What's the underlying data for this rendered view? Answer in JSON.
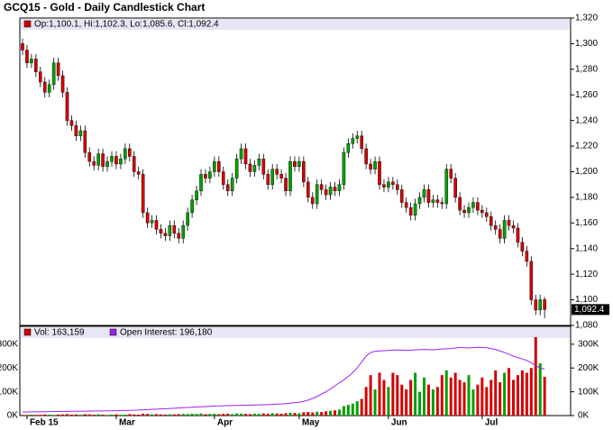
{
  "chart_data": {
    "type": "candlestick",
    "title": "GCQ15 - Gold - Daily Candlestick Chart",
    "ohlc_label": "Op:1,100.1, Hi:1,102.3, Lo:1,085.6, Cl:1,092.4",
    "last_label": "1,092.4",
    "up_color": "#00a000",
    "down_color": "#d40000",
    "categories": [
      null,
      "Feb 15",
      null,
      null,
      null,
      null,
      null,
      null,
      null,
      null,
      null,
      null,
      null,
      null,
      null,
      null,
      null,
      null,
      null,
      null,
      null,
      "Mar",
      null,
      null,
      null,
      null,
      null,
      null,
      null,
      null,
      null,
      null,
      null,
      null,
      null,
      null,
      null,
      null,
      null,
      null,
      null,
      null,
      null,
      "Apr",
      null,
      null,
      null,
      null,
      null,
      null,
      null,
      null,
      null,
      null,
      null,
      null,
      null,
      null,
      null,
      null,
      null,
      null,
      "May",
      null,
      null,
      null,
      null,
      null,
      null,
      null,
      null,
      null,
      null,
      null,
      null,
      null,
      null,
      null,
      null,
      null,
      null,
      null,
      "Jun",
      null,
      null,
      null,
      null,
      null,
      null,
      null,
      null,
      null,
      null,
      null,
      null,
      null,
      null,
      null,
      null,
      null,
      null,
      null,
      null,
      "Jul",
      null,
      null,
      null,
      null,
      null,
      null,
      null,
      null,
      null,
      null,
      null,
      null,
      null,
      null
    ],
    "candles": [
      [
        1300,
        1304,
        1291,
        1295
      ],
      [
        1295,
        1299,
        1281,
        1285
      ],
      [
        1285,
        1292,
        1281,
        1288
      ],
      [
        1288,
        1292,
        1274,
        1278
      ],
      [
        1278,
        1282,
        1266,
        1270
      ],
      [
        1270,
        1274,
        1258,
        1262
      ],
      [
        1262,
        1272,
        1258,
        1268
      ],
      [
        1268,
        1289,
        1264,
        1285
      ],
      [
        1285,
        1289,
        1271,
        1275
      ],
      [
        1275,
        1279,
        1258,
        1262
      ],
      [
        1262,
        1266,
        1236,
        1240
      ],
      [
        1240,
        1244,
        1232,
        1236
      ],
      [
        1236,
        1240,
        1224,
        1228
      ],
      [
        1228,
        1236,
        1224,
        1232
      ],
      [
        1232,
        1236,
        1211,
        1215
      ],
      [
        1215,
        1219,
        1204,
        1208
      ],
      [
        1208,
        1212,
        1201,
        1205
      ],
      [
        1205,
        1218,
        1201,
        1214
      ],
      [
        1214,
        1218,
        1200,
        1204
      ],
      [
        1204,
        1212,
        1200,
        1208
      ],
      [
        1208,
        1216,
        1204,
        1212
      ],
      [
        1212,
        1216,
        1202,
        1206
      ],
      [
        1206,
        1214,
        1202,
        1210
      ],
      [
        1210,
        1222,
        1206,
        1218
      ],
      [
        1218,
        1222,
        1208,
        1212
      ],
      [
        1212,
        1216,
        1196,
        1200
      ],
      [
        1200,
        1204,
        1194,
        1198
      ],
      [
        1198,
        1202,
        1164,
        1168
      ],
      [
        1168,
        1172,
        1156,
        1160
      ],
      [
        1160,
        1166,
        1156,
        1162
      ],
      [
        1162,
        1166,
        1151,
        1155
      ],
      [
        1155,
        1159,
        1148,
        1152
      ],
      [
        1152,
        1156,
        1146,
        1150
      ],
      [
        1150,
        1162,
        1146,
        1158
      ],
      [
        1158,
        1162,
        1148,
        1152
      ],
      [
        1152,
        1156,
        1144,
        1148
      ],
      [
        1148,
        1162,
        1144,
        1158
      ],
      [
        1158,
        1172,
        1154,
        1168
      ],
      [
        1168,
        1182,
        1164,
        1178
      ],
      [
        1178,
        1189,
        1174,
        1185
      ],
      [
        1185,
        1202,
        1181,
        1198
      ],
      [
        1198,
        1202,
        1191,
        1195
      ],
      [
        1195,
        1204,
        1191,
        1200
      ],
      [
        1200,
        1212,
        1196,
        1208
      ],
      [
        1208,
        1212,
        1196,
        1200
      ],
      [
        1200,
        1204,
        1186,
        1190
      ],
      [
        1190,
        1194,
        1181,
        1185
      ],
      [
        1185,
        1199,
        1181,
        1195
      ],
      [
        1195,
        1214,
        1191,
        1210
      ],
      [
        1210,
        1222,
        1206,
        1218
      ],
      [
        1218,
        1222,
        1202,
        1206
      ],
      [
        1206,
        1210,
        1196,
        1200
      ],
      [
        1200,
        1209,
        1196,
        1205
      ],
      [
        1205,
        1214,
        1201,
        1210
      ],
      [
        1210,
        1214,
        1194,
        1198
      ],
      [
        1198,
        1202,
        1186,
        1190
      ],
      [
        1190,
        1206,
        1186,
        1202
      ],
      [
        1202,
        1206,
        1194,
        1198
      ],
      [
        1198,
        1202,
        1191,
        1195
      ],
      [
        1195,
        1199,
        1181,
        1185
      ],
      [
        1185,
        1212,
        1181,
        1208
      ],
      [
        1208,
        1212,
        1200,
        1204
      ],
      [
        1204,
        1212,
        1200,
        1208
      ],
      [
        1208,
        1212,
        1188,
        1192
      ],
      [
        1192,
        1196,
        1176,
        1180
      ],
      [
        1180,
        1184,
        1171,
        1175
      ],
      [
        1175,
        1194,
        1171,
        1190
      ],
      [
        1190,
        1194,
        1182,
        1186
      ],
      [
        1186,
        1190,
        1178,
        1182
      ],
      [
        1182,
        1192,
        1178,
        1188
      ],
      [
        1188,
        1192,
        1181,
        1185
      ],
      [
        1185,
        1194,
        1181,
        1190
      ],
      [
        1190,
        1219,
        1186,
        1215
      ],
      [
        1215,
        1226,
        1211,
        1222
      ],
      [
        1222,
        1230,
        1218,
        1226
      ],
      [
        1226,
        1232,
        1222,
        1228
      ],
      [
        1228,
        1232,
        1214,
        1218
      ],
      [
        1218,
        1222,
        1202,
        1206
      ],
      [
        1206,
        1210,
        1198,
        1202
      ],
      [
        1202,
        1212,
        1198,
        1208
      ],
      [
        1208,
        1212,
        1186,
        1190
      ],
      [
        1190,
        1194,
        1184,
        1188
      ],
      [
        1188,
        1196,
        1184,
        1192
      ],
      [
        1192,
        1196,
        1186,
        1190
      ],
      [
        1190,
        1194,
        1182,
        1186
      ],
      [
        1186,
        1190,
        1172,
        1176
      ],
      [
        1176,
        1180,
        1168,
        1172
      ],
      [
        1172,
        1176,
        1162,
        1166
      ],
      [
        1166,
        1179,
        1162,
        1175
      ],
      [
        1175,
        1184,
        1171,
        1180
      ],
      [
        1180,
        1190,
        1176,
        1186
      ],
      [
        1186,
        1190,
        1172,
        1176
      ],
      [
        1176,
        1182,
        1172,
        1178
      ],
      [
        1178,
        1182,
        1172,
        1176
      ],
      [
        1176,
        1180,
        1171,
        1175
      ],
      [
        1175,
        1206,
        1171,
        1202
      ],
      [
        1202,
        1206,
        1191,
        1195
      ],
      [
        1195,
        1199,
        1176,
        1180
      ],
      [
        1180,
        1184,
        1166,
        1170
      ],
      [
        1170,
        1174,
        1164,
        1168
      ],
      [
        1168,
        1176,
        1164,
        1172
      ],
      [
        1172,
        1180,
        1168,
        1176
      ],
      [
        1176,
        1180,
        1166,
        1170
      ],
      [
        1170,
        1174,
        1164,
        1168
      ],
      [
        1168,
        1172,
        1161,
        1165
      ],
      [
        1165,
        1169,
        1154,
        1158
      ],
      [
        1158,
        1162,
        1151,
        1155
      ],
      [
        1155,
        1159,
        1144,
        1148
      ],
      [
        1148,
        1166,
        1144,
        1162
      ],
      [
        1162,
        1166,
        1154,
        1158
      ],
      [
        1158,
        1162,
        1152,
        1156
      ],
      [
        1156,
        1160,
        1141,
        1145
      ],
      [
        1145,
        1149,
        1134,
        1138
      ],
      [
        1138,
        1142,
        1126,
        1130
      ],
      [
        1130,
        1134,
        1096,
        1100
      ],
      [
        1100,
        1104,
        1088,
        1092
      ],
      [
        1092,
        1104,
        1088,
        1100
      ],
      [
        1100.1,
        1102.3,
        1085.6,
        1092.4
      ]
    ],
    "ylim": [
      1080,
      1320
    ],
    "yticks": [
      {
        "value": 1080,
        "label": "1,080"
      },
      {
        "value": 1100,
        "label": "1,100"
      },
      {
        "value": 1120,
        "label": "1,120"
      },
      {
        "value": 1140,
        "label": "1,140"
      },
      {
        "value": 1160,
        "label": "1,160"
      },
      {
        "value": 1180,
        "label": "1,180"
      },
      {
        "value": 1200,
        "label": "1,200"
      },
      {
        "value": 1220,
        "label": "1,220"
      },
      {
        "value": 1240,
        "label": "1,240"
      },
      {
        "value": 1260,
        "label": "1,260"
      },
      {
        "value": 1280,
        "label": "1,280"
      },
      {
        "value": 1300,
        "label": "1,300"
      },
      {
        "value": 1320,
        "label": "1,320"
      }
    ],
    "volume": {
      "legend": "Vol: 163,159",
      "values": [
        3000,
        2500,
        4000,
        3000,
        3500,
        5000,
        4000,
        3000,
        4500,
        5000,
        6000,
        4000,
        5000,
        3500,
        6000,
        5000,
        4000,
        5500,
        4000,
        3000,
        4000,
        5000,
        3500,
        4000,
        6000,
        5000,
        4000,
        8000,
        7000,
        5000,
        6000,
        5000,
        4000,
        5500,
        5000,
        6000,
        7000,
        6500,
        8000,
        7000,
        9000,
        6000,
        7000,
        8000,
        6000,
        7000,
        8000,
        6000,
        9000,
        8000,
        7000,
        6000,
        8000,
        7000,
        9000,
        8000,
        10000,
        9000,
        8000,
        10000,
        12000,
        11000,
        10000,
        14000,
        15000,
        13000,
        16000,
        15000,
        18000,
        20000,
        22000,
        25000,
        40000,
        45000,
        50000,
        60000,
        70000,
        120000,
        170000,
        110000,
        180000,
        150000,
        120000,
        180000,
        170000,
        130000,
        110000,
        150000,
        180000,
        100000,
        160000,
        130000,
        110000,
        120000,
        170000,
        190000,
        160000,
        180000,
        150000,
        140000,
        170000,
        110000,
        130000,
        160000,
        120000,
        150000,
        190000,
        140000,
        180000,
        200000,
        150000,
        170000,
        190000,
        180000,
        200000,
        330000,
        220000,
        163159
      ],
      "ylim": [
        0,
        360000
      ],
      "yticks": [
        {
          "value": 0,
          "label": "0K"
        },
        {
          "value": 100000,
          "label": "100K"
        },
        {
          "value": 200000,
          "label": "200K"
        },
        {
          "value": 300000,
          "label": "300K"
        }
      ]
    },
    "open_interest": {
      "legend": "Open Interest: 196,180",
      "color": "#a020f0",
      "values": [
        15000,
        15200,
        15500,
        15800,
        16000,
        16200,
        16500,
        16800,
        17000,
        17200,
        17500,
        17800,
        18000,
        18300,
        18500,
        18800,
        19000,
        19200,
        19500,
        19800,
        20000,
        20500,
        21000,
        21500,
        22000,
        22500,
        23000,
        24000,
        25000,
        26000,
        27000,
        28000,
        29000,
        30000,
        31000,
        32000,
        33000,
        34000,
        35000,
        36000,
        37000,
        38000,
        39000,
        40000,
        40500,
        41000,
        41500,
        42000,
        42500,
        43000,
        43500,
        44000,
        44500,
        45000,
        45500,
        46000,
        47000,
        48000,
        49000,
        50000,
        52000,
        54000,
        56000,
        60000,
        65000,
        72000,
        80000,
        90000,
        100000,
        112000,
        125000,
        138000,
        150000,
        165000,
        180000,
        200000,
        225000,
        250000,
        265000,
        270000,
        272000,
        273000,
        274000,
        275000,
        276000,
        275000,
        274000,
        275000,
        276000,
        277000,
        278000,
        277000,
        276000,
        278000,
        280000,
        281000,
        282000,
        284000,
        286000,
        285000,
        284000,
        286000,
        287000,
        286000,
        285000,
        282000,
        278000,
        272000,
        265000,
        258000,
        250000,
        244000,
        238000,
        232000,
        222000,
        210000,
        200000,
        196180
      ]
    }
  }
}
